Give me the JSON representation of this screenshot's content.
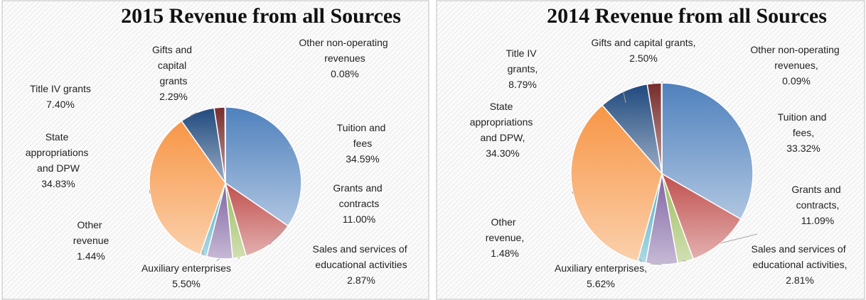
{
  "chart_data": [
    {
      "type": "pie",
      "title": "2015 Revenue from all Sources",
      "categories": [
        "Tuition and fees",
        "Grants and contracts",
        "Sales and services of educational activities",
        "Auxiliary enterprises",
        "Other revenue",
        "State appropriations and DPW",
        "Title IV grants",
        "Gifts and capital grants",
        "Other non-operating revenues"
      ],
      "values": [
        34.59,
        11.0,
        2.87,
        5.5,
        1.44,
        34.83,
        7.4,
        2.29,
        0.08
      ],
      "value_labels": [
        "34.59%",
        "11.00%",
        "2.87%",
        "5.50%",
        "1.44%",
        "34.83%",
        "7.40%",
        "2.29%",
        "0.08%"
      ],
      "colors": [
        "#4f81bd",
        "#c0504d",
        "#9bbb59",
        "#8064a2",
        "#4bacc6",
        "#f79646",
        "#1f497d",
        "#772c2a",
        "#7f7f7f"
      ]
    },
    {
      "type": "pie",
      "title": "2014 Revenue from all Sources",
      "categories": [
        "Tuition and fees,",
        "Grants and contracts,",
        "Sales and services of educational activities,",
        "Auxiliary enterprises,",
        "Other revenue,",
        "State appropriations and DPW,",
        "Title IV grants,",
        "Gifts and capital grants,",
        "Other non-operating revenues,"
      ],
      "values": [
        33.32,
        11.09,
        2.81,
        5.62,
        1.48,
        34.3,
        8.79,
        2.5,
        0.09
      ],
      "value_labels": [
        "33.32%",
        "11.09%",
        "2.81%",
        "5.62%",
        "1.48%",
        "34.30%",
        "8.79%",
        "2.50%",
        "0.09%"
      ],
      "colors": [
        "#4f81bd",
        "#c0504d",
        "#9bbb59",
        "#8064a2",
        "#4bacc6",
        "#f79646",
        "#1f497d",
        "#772c2a",
        "#7f7f7f"
      ]
    }
  ]
}
